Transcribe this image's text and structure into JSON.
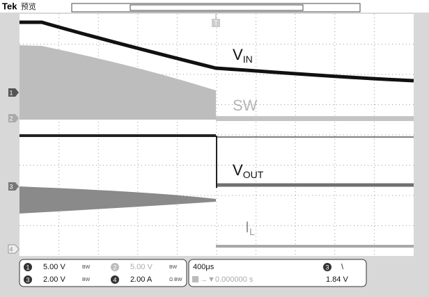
{
  "header": {
    "brand": "Tek",
    "mode": "预览"
  },
  "trigger_marker": "T",
  "channel_markers": [
    "1",
    "2",
    "3",
    "4"
  ],
  "waveform_labels": [
    {
      "main": "V",
      "sub": "IN"
    },
    {
      "main": "SW"
    },
    {
      "main": "V",
      "sub": "OUT"
    },
    {
      "main": "I",
      "sub": "L"
    }
  ],
  "readouts": {
    "channels": [
      {
        "channel": "1",
        "scale": "5.00 V",
        "bw": "BW"
      },
      {
        "channel": "2",
        "scale": "5.00 V",
        "bw": "BW"
      },
      {
        "channel": "3",
        "scale": "2.00 V",
        "bw": "BW"
      },
      {
        "channel": "4",
        "scale": "2.00 A",
        "bw": "Ω BW"
      }
    ],
    "timebase": "400μs",
    "position": "→▼0.000000 s",
    "trigger_channel": "3",
    "trigger_slope": "\\",
    "trigger_level": "1.84 V"
  }
}
